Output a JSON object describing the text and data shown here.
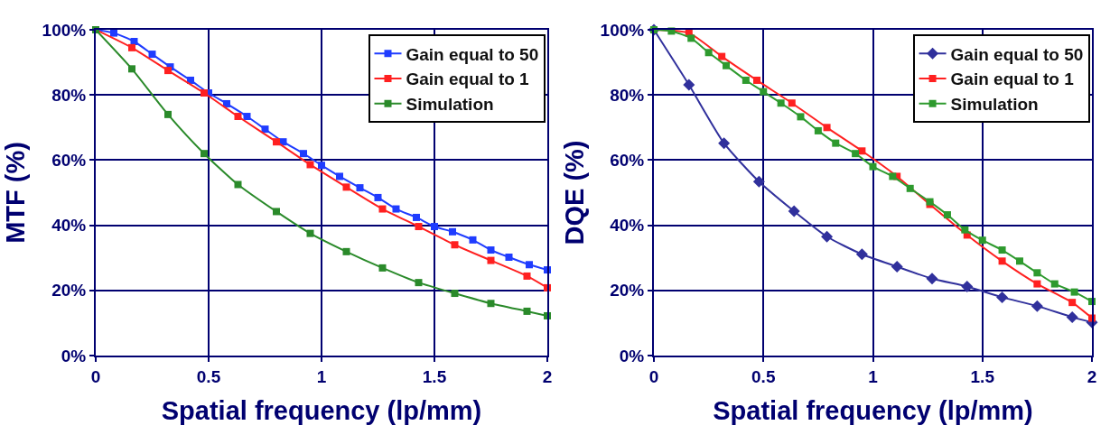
{
  "chart_data": [
    {
      "type": "line",
      "xlabel": "Spatial frequency (lp/mm)",
      "ylabel": "MTF (%)",
      "xlim": [
        0,
        2
      ],
      "xticks": [
        0,
        0.5,
        1,
        1.5,
        2
      ],
      "ylim": [
        0,
        100
      ],
      "yticks": [
        {
          "value": 0,
          "label": "0%"
        },
        {
          "value": 20,
          "label": "20%"
        },
        {
          "value": 40,
          "label": "40%"
        },
        {
          "value": 60,
          "label": "60%"
        },
        {
          "value": 80,
          "label": "80%"
        },
        {
          "value": 100,
          "label": "100%"
        }
      ],
      "grid": true,
      "legend": "top right",
      "series": [
        {
          "name": "Gain equal to 50",
          "color": "#1f3cff",
          "marker": "square",
          "x": [
            0,
            0.08,
            0.17,
            0.25,
            0.33,
            0.42,
            0.5,
            0.58,
            0.67,
            0.75,
            0.83,
            0.92,
            1,
            1.08,
            1.17,
            1.25,
            1.33,
            1.42,
            1.5,
            1.58,
            1.67,
            1.75,
            1.83,
            1.92,
            2
          ],
          "values": [
            100,
            99,
            96.4,
            92.5,
            88.6,
            84.5,
            80.6,
            77.3,
            73.4,
            69.5,
            65.6,
            62,
            58.4,
            55,
            51.5,
            48.5,
            45,
            42.4,
            39.6,
            38,
            35.5,
            32.4,
            30.2,
            27.9,
            26.3
          ]
        },
        {
          "name": "Gain equal to 1",
          "color": "#ff2020",
          "marker": "square",
          "x": [
            0,
            0.16,
            0.32,
            0.48,
            0.63,
            0.8,
            0.95,
            1.11,
            1.27,
            1.43,
            1.59,
            1.75,
            1.91,
            2
          ],
          "values": [
            100,
            94.5,
            87.5,
            80.6,
            73.4,
            65.6,
            58.6,
            51.7,
            45,
            39.6,
            34,
            29.2,
            24.4,
            20.8
          ]
        },
        {
          "name": "Simulation",
          "color": "#2a8a2a",
          "marker": "square",
          "x": [
            0,
            0.16,
            0.32,
            0.48,
            0.63,
            0.8,
            0.95,
            1.11,
            1.27,
            1.43,
            1.59,
            1.75,
            1.91,
            2
          ],
          "values": [
            100,
            88,
            74,
            62,
            52.5,
            44.2,
            37.5,
            31.9,
            26.9,
            22.4,
            19.1,
            16,
            13.6,
            12.2
          ]
        }
      ]
    },
    {
      "type": "line",
      "xlabel": "Spatial frequency (lp/mm)",
      "ylabel": "DQE (%)",
      "xlim": [
        0,
        2
      ],
      "xticks": [
        0,
        0.5,
        1,
        1.5,
        2
      ],
      "ylim": [
        0,
        100
      ],
      "yticks": [
        {
          "value": 0,
          "label": "0%"
        },
        {
          "value": 20,
          "label": "20%"
        },
        {
          "value": 40,
          "label": "40%"
        },
        {
          "value": 60,
          "label": "60%"
        },
        {
          "value": 80,
          "label": "80%"
        },
        {
          "value": 100,
          "label": "100%"
        }
      ],
      "grid": true,
      "legend": "top right",
      "series": [
        {
          "name": "Gain equal to 50",
          "color": "#30309c",
          "marker": "diamond",
          "x": [
            0,
            0.16,
            0.32,
            0.48,
            0.64,
            0.79,
            0.95,
            1.11,
            1.27,
            1.43,
            1.59,
            1.75,
            1.91,
            2
          ],
          "values": [
            100,
            83.1,
            65.2,
            53.4,
            44.3,
            36.5,
            31.1,
            27.3,
            23.6,
            21.2,
            17.9,
            15.2,
            11.8,
            10.2
          ]
        },
        {
          "name": "Gain equal to 1",
          "color": "#ff2020",
          "marker": "square",
          "x": [
            0,
            0.16,
            0.31,
            0.47,
            0.63,
            0.79,
            0.95,
            1.11,
            1.26,
            1.43,
            1.59,
            1.75,
            1.91,
            2
          ],
          "values": [
            100,
            99,
            91.8,
            84.5,
            77.5,
            70,
            62.8,
            55,
            46.4,
            37,
            29,
            22,
            16.3,
            11.5
          ]
        },
        {
          "name": "Simulation",
          "color": "#2e9a2e",
          "marker": "square",
          "x": [
            0,
            0.08,
            0.17,
            0.25,
            0.33,
            0.42,
            0.5,
            0.58,
            0.67,
            0.75,
            0.83,
            0.92,
            1,
            1.09,
            1.17,
            1.26,
            1.34,
            1.42,
            1.5,
            1.59,
            1.67,
            1.75,
            1.83,
            1.92,
            2
          ],
          "values": [
            100,
            99.6,
            97.4,
            93,
            89,
            84.5,
            81,
            77.5,
            73.3,
            69,
            65.2,
            62,
            58,
            55,
            51.3,
            47.2,
            43.2,
            38.6,
            35.4,
            32.4,
            29,
            25.4,
            22,
            19.5,
            16.6
          ]
        }
      ]
    }
  ]
}
